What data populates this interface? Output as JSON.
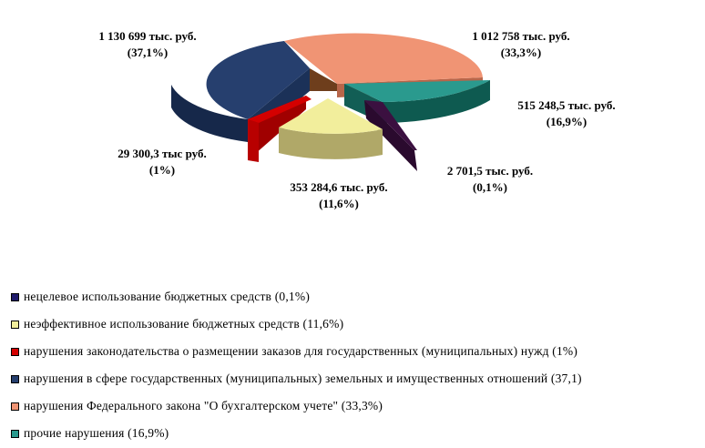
{
  "colors": {
    "dark_purple": "#3b1040",
    "light_yellow": "#f2ee9c",
    "red": "#d40000",
    "dark_blue": "#263f6e",
    "salmon": "#f09474",
    "teal": "#2a9a8e"
  },
  "chart_data": {
    "type": "pie",
    "style": "3d-exploded",
    "unit": "тыс. руб.",
    "slices": [
      {
        "legend": "нецелевое использование бюджетных средств (0,1%)",
        "value": 2701.5,
        "percent": 0.1,
        "label_value": "2 701,5 тыс. руб.",
        "label_percent": "(0,1%)",
        "color": "#3b1040",
        "swatch": "#1f1a6b"
      },
      {
        "legend": "неэффективное использование бюджетных средств (11,6%)",
        "value": 353284.6,
        "percent": 11.6,
        "label_value": "353 284,6 тыс. руб.",
        "label_percent": "(11,6%)",
        "color": "#f2ee9c",
        "swatch": "#f2ee9c"
      },
      {
        "legend": "нарушения законодательства о размещении заказов для государственных (муниципальных) нужд (1%)",
        "value": 29300.3,
        "percent": 1,
        "label_value": "29 300,3 тыс руб.",
        "label_percent": "(1%)",
        "color": "#d40000",
        "swatch": "#d40000"
      },
      {
        "legend": "нарушения в сфере государственных (муниципальных) земельных и имущественных отношений (37,1)",
        "value": 1130699,
        "percent": 37.1,
        "label_value": "1 130 699 тыс. руб.",
        "label_percent": "(37,1%)",
        "color": "#263f6e",
        "swatch": "#263f6e"
      },
      {
        "legend": "нарушения Федерального закона \"О бухгалтерском учете\" (33,3%)",
        "value": 1012758,
        "percent": 33.3,
        "label_value": "1 012 758 тыс. руб.",
        "label_percent": "(33,3%)",
        "color": "#f09474",
        "swatch": "#f09474"
      },
      {
        "legend": "прочие нарушения (16,9%)",
        "value": 515248.5,
        "percent": 16.9,
        "label_value": "515 248,5 тыс. руб.",
        "label_percent": "(16,9%)",
        "color": "#2a9a8e",
        "swatch": "#2a9a8e"
      }
    ]
  }
}
